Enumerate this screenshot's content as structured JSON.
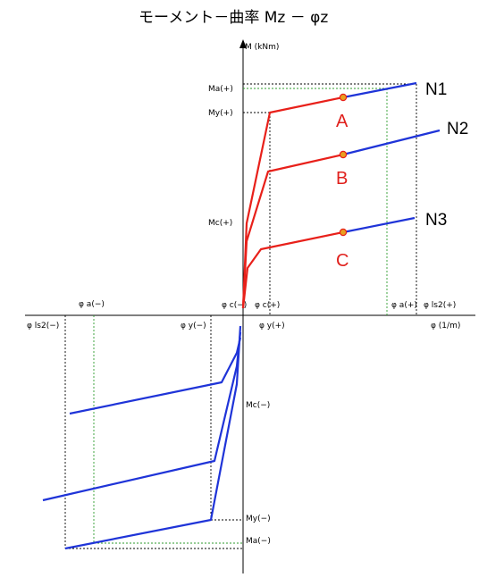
{
  "title": "モーメント－曲率 Mz － φz",
  "axes": {
    "y_axis_label": "M (kNm)",
    "x_axis_label": "φ (1/m)"
  },
  "y_labels": {
    "ma_pos": "Ma(+)",
    "my_pos": "My(+)",
    "mc_pos": "Mc(+)",
    "mc_neg": "Mc(−)",
    "my_neg": "My(−)",
    "ma_neg": "Ma(−)"
  },
  "x_labels": {
    "phi_ls2_neg": "φ ls2(−)",
    "phi_a_neg": "φ a(−)",
    "phi_y_neg": "φ y(−)",
    "phi_c_neg": "φ c(−)",
    "phi_c_pos": "φ c(+)",
    "phi_y_pos": "φ y(+)",
    "phi_a_pos": "φ a(+)",
    "phi_ls2_pos": "φ ls2(+)"
  },
  "curves": {
    "n1": "N1",
    "n2": "N2",
    "n3": "N3"
  },
  "points": {
    "a": "A",
    "b": "B",
    "c": "C"
  },
  "colors": {
    "positive_branch": "#e8201a",
    "negative_branch": "#1f34d8",
    "guide_green": "#2e9b2e",
    "marker_fill": "#e8a020"
  }
}
